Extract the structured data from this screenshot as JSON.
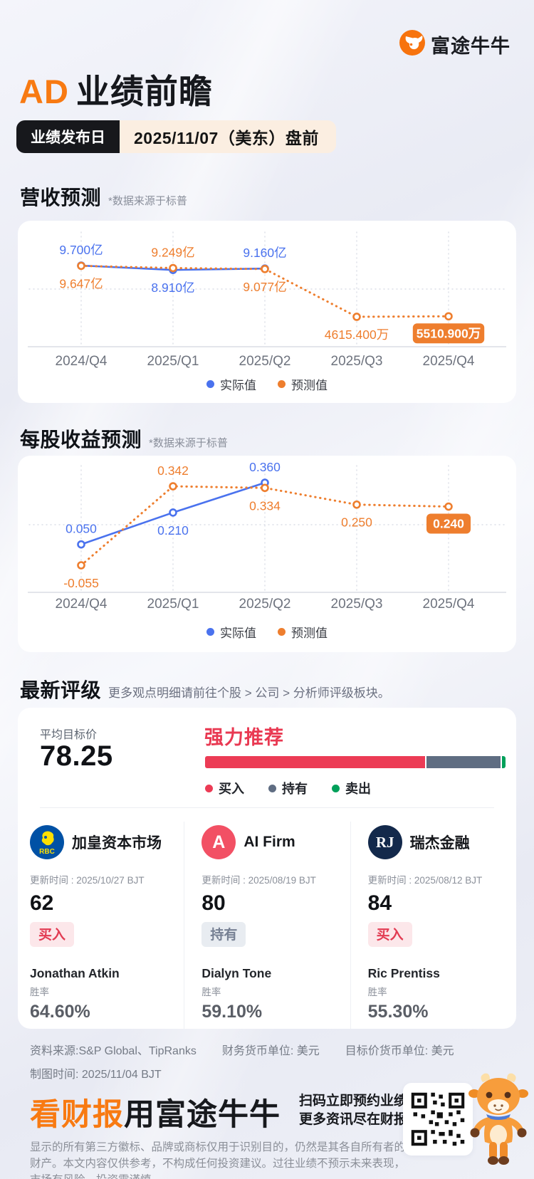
{
  "brand": {
    "logo_text": "富途牛牛"
  },
  "header": {
    "ticker": "AD",
    "title_suffix": "业绩前瞻"
  },
  "release": {
    "label": "业绩发布日",
    "date": "2025/11/07（美东）盘前"
  },
  "sections": {
    "revenue": {
      "title": "营收预测",
      "note": "*数据来源于标普"
    },
    "eps": {
      "title": "每股收益预测",
      "note": "*数据来源于标普"
    },
    "rating": {
      "title": "最新评级",
      "note": "更多观点明细请前往个股 > 公司 > 分析师评级板块。"
    }
  },
  "chart_data": [
    {
      "type": "line",
      "title": "营收预测",
      "categories": [
        "2024/Q4",
        "2025/Q1",
        "2025/Q2",
        "2025/Q3",
        "2025/Q4"
      ],
      "unit": "CNY reported in 亿 / 万",
      "ylim": [
        0,
        10.5
      ],
      "grid": true,
      "legend_position": "bottom",
      "series": [
        {
          "name": "实际值",
          "color": "#4a72ee",
          "style": "solid",
          "values": [
            9.7,
            8.91,
            9.16,
            null,
            null
          ],
          "labels": [
            "9.700亿",
            "8.910亿",
            "9.160亿",
            null,
            null
          ],
          "label_pos": [
            "above",
            "below",
            "above",
            null,
            null
          ]
        },
        {
          "name": "预测值",
          "color": "#ee7e2e",
          "style": "dotted",
          "values": [
            9.647,
            9.249,
            9.077,
            0.46154,
            0.55109
          ],
          "labels": [
            "9.647亿",
            "9.249亿",
            "9.077亿",
            "4615.400万",
            "5510.900万"
          ],
          "label_pos": [
            "below",
            "above",
            "below",
            "below",
            "below-box"
          ]
        }
      ]
    },
    {
      "type": "line",
      "title": "每股收益预测",
      "categories": [
        "2024/Q4",
        "2025/Q1",
        "2025/Q2",
        "2025/Q3",
        "2025/Q4"
      ],
      "unit": "USD",
      "ylim": [
        -0.12,
        0.42
      ],
      "grid": true,
      "legend_position": "bottom",
      "series": [
        {
          "name": "实际值",
          "color": "#4a72ee",
          "style": "solid",
          "values": [
            0.05,
            0.21,
            0.36,
            null,
            null
          ],
          "labels": [
            "0.050",
            "0.210",
            "0.360",
            null,
            null
          ],
          "label_pos": [
            "above",
            "below",
            "above",
            null,
            null
          ]
        },
        {
          "name": "预测值",
          "color": "#ee7e2e",
          "style": "dotted",
          "values": [
            -0.055,
            0.342,
            0.334,
            0.25,
            0.24
          ],
          "labels": [
            "-0.055",
            "0.342",
            "0.334",
            "0.250",
            "0.240"
          ],
          "label_pos": [
            "below",
            "above",
            "below",
            "below",
            "below-box"
          ]
        }
      ]
    }
  ],
  "rating": {
    "avg_target_label": "平均目标价",
    "avg_target_value": "78.25",
    "consensus": "强力推荐",
    "bar": [
      {
        "name": "买入",
        "color": "#ec3b55",
        "pct": 74.0
      },
      {
        "name": "持有",
        "color": "#5f6d82",
        "pct": 24.7
      },
      {
        "name": "卖出",
        "color": "#00a05a",
        "pct": 1.3
      }
    ]
  },
  "analysts": [
    {
      "firm": "加皇资本市场",
      "logo_type": "rbc",
      "logo_bg": "#0051a5",
      "logo_text": "RBC",
      "updated": "更新时间 : 2025/10/27 BJT",
      "score": "62",
      "rating": "买入",
      "rating_type": "buy",
      "analyst": "Jonathan Atkin",
      "win_label": "胜率",
      "win_rate": "64.60%"
    },
    {
      "firm": "AI Firm",
      "logo_type": "letter",
      "logo_bg": "#f25064",
      "logo_text": "A",
      "updated": "更新时间 : 2025/08/19 BJT",
      "score": "80",
      "rating": "持有",
      "rating_type": "hold",
      "analyst": "Dialyn Tone",
      "win_label": "胜率",
      "win_rate": "59.10%"
    },
    {
      "firm": "瑞杰金融",
      "logo_type": "rj",
      "logo_bg": "#13294b",
      "logo_text": "RJ",
      "updated": "更新时间 : 2025/08/12 BJT",
      "score": "84",
      "rating": "买入",
      "rating_type": "buy",
      "analyst": "Ric Prentiss",
      "win_label": "胜率",
      "win_rate": "55.30%"
    }
  ],
  "footer": {
    "source": "资料来源:S&P Global、TipRanks",
    "fin_currency": "财务货币单位: 美元",
    "target_currency": "目标价货币单位: 美元",
    "chart_time": "制图时间: 2025/11/04 BJT"
  },
  "banner": {
    "headline_orange": "看财报",
    "headline_dark": "用富途牛牛",
    "line1": "扫码立即预约业绩直播",
    "line2": "更多资讯尽在财报站",
    "disclaimer": "显示的所有第三方徽标、品牌或商标仅用于识别目的，仍然是其各自所有者的财产。本文内容仅供参考，不构成任何投资建议。过往业绩不预示未来表现，市场有风险，投资需谨慎。"
  },
  "colors": {
    "accent_orange": "#f87a12",
    "chart_blue": "#4a72ee",
    "chart_orange": "#ee7e2e",
    "rating_red": "#ec3b55",
    "rating_gray": "#5f6d82",
    "rating_green": "#00a05a"
  }
}
